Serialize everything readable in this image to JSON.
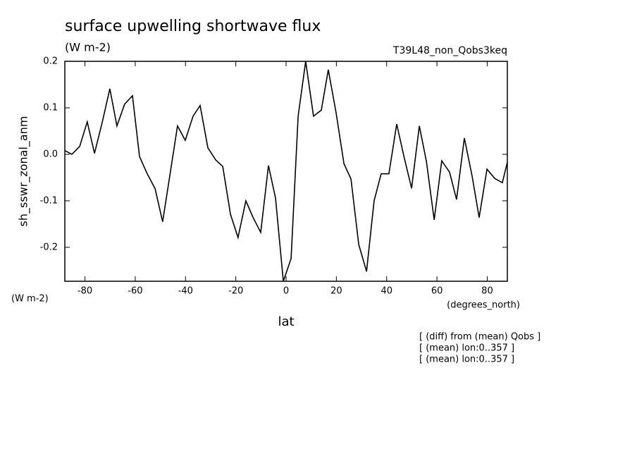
{
  "chart_data": {
    "type": "line",
    "title": "surface upwelling shortwave flux",
    "subtitle": "(W m-2)",
    "experiment": "T39L48_non_Qobs3keq",
    "y_label": "sh_sswr_zonal_anm",
    "y_units": "(W m-2)",
    "x_units": "(degrees_north)",
    "x_label": "lat",
    "notes": [
      "[ (diff) from (mean) Qobs ]",
      "[ (mean) lon:0..357 ]",
      "[ (mean) lon:0..357 ]"
    ],
    "color": "#000000",
    "xlim": [
      -88,
      88
    ],
    "ylim": [
      -0.273,
      0.2
    ],
    "xticks": [
      -80,
      -60,
      -40,
      -20,
      0,
      20,
      40,
      60,
      80
    ],
    "yticks": [
      -0.2,
      -0.1,
      {
        "value": 0,
        "label": "0.0"
      },
      0.1,
      0.2
    ],
    "x": [
      -88.0,
      -85.2,
      -82.1,
      -79.1,
      -76.2,
      -73.2,
      -70.1,
      -67.3,
      -64.2,
      -61.1,
      -58.3,
      -55.2,
      -52.1,
      -49.1,
      -46.2,
      -43.2,
      -40.1,
      -37.0,
      -34.2,
      -31.1,
      -28.0,
      -25.2,
      -22.1,
      -19.1,
      -16.0,
      -13.2,
      -10.1,
      -7.0,
      -4.2,
      -1.1,
      2.0,
      4.8,
      7.8,
      10.9,
      14.0,
      16.8,
      19.9,
      23.0,
      25.8,
      28.9,
      32.0,
      35.0,
      37.8,
      40.9,
      44.0,
      46.8,
      49.9,
      53.0,
      55.8,
      58.9,
      61.9,
      65.0,
      67.8,
      70.9,
      74.0,
      76.8,
      79.9,
      83.0,
      86.0,
      88.0
    ],
    "values": [
      0.008,
      0.0,
      0.017,
      0.07,
      0.002,
      0.067,
      0.141,
      0.061,
      0.108,
      0.126,
      -0.005,
      -0.042,
      -0.074,
      -0.145,
      -0.044,
      0.061,
      0.03,
      0.082,
      0.105,
      0.014,
      -0.012,
      -0.026,
      -0.129,
      -0.179,
      -0.1,
      -0.135,
      -0.168,
      -0.024,
      -0.094,
      -0.273,
      -0.224,
      0.082,
      0.2,
      0.082,
      0.095,
      0.182,
      0.089,
      -0.02,
      -0.053,
      -0.194,
      -0.252,
      -0.1,
      -0.042,
      -0.042,
      0.065,
      -0.003,
      -0.073,
      0.061,
      -0.015,
      -0.141,
      -0.014,
      -0.038,
      -0.097,
      0.035,
      -0.047,
      -0.136,
      -0.032,
      -0.052,
      -0.061,
      -0.017
    ]
  }
}
